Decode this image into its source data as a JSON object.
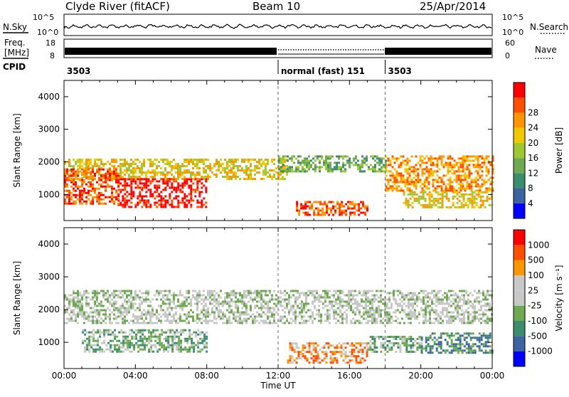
{
  "header": {
    "title": "Clyde River (fitACF)",
    "beam": "Beam 10",
    "date": "25/Apr/2014"
  },
  "top_strip": {
    "left_label": "N.Sky",
    "right_label": "N.Search",
    "left_ticks": [
      "10^5",
      "10^0"
    ],
    "right_ticks": [
      "10^5",
      "10^0"
    ]
  },
  "freq_strip": {
    "left_label_1": "Freq.",
    "left_label_2": "[MHz]",
    "right_label": "Nave",
    "left_ticks": [
      "18",
      "8"
    ],
    "right_ticks": [
      "60",
      "0"
    ]
  },
  "cpid": {
    "label": "CPID",
    "segments": [
      {
        "start_hour": 0,
        "text": "3503"
      },
      {
        "start_hour": 12,
        "text": "normal (fast) 151"
      },
      {
        "start_hour": 18,
        "text": "3503"
      }
    ]
  },
  "colors": {
    "power_scale": [
      "#0000ff",
      "#3c64a0",
      "#3c8c6e",
      "#6eaa50",
      "#a0c832",
      "#f0c800",
      "#ff9600",
      "#ff5000",
      "#ff0000"
    ],
    "velocity_scale": [
      "#0000ff",
      "#3c64a0",
      "#3c8c6e",
      "#6eaa50",
      "#c8c8c8",
      "#c8c8c8",
      "#ff9600",
      "#ff5000",
      "#ff0000"
    ]
  },
  "chart_data": [
    {
      "type": "heatmap",
      "id": "power",
      "ylabel": "Slant Range [km]",
      "ylim": [
        200,
        4500
      ],
      "xlim": [
        0,
        24
      ],
      "y_ticks": [
        "1000",
        "2000",
        "3000",
        "4000"
      ],
      "y_tick_values": [
        1000,
        2000,
        3000,
        4000
      ],
      "colorbar_label": "Power [dB]",
      "colorbar_ticks": [
        "4",
        "8",
        "12",
        "16",
        "20",
        "24",
        "28"
      ],
      "bands": [
        {
          "x": [
            0,
            12.5
          ],
          "y": [
            1500,
            2100
          ],
          "level": 5
        },
        {
          "x": [
            3,
            8
          ],
          "y": [
            600,
            1500
          ],
          "level": 8
        },
        {
          "x": [
            0,
            3
          ],
          "y": [
            700,
            1800
          ],
          "level": 7
        },
        {
          "x": [
            12,
            18
          ],
          "y": [
            1700,
            2200
          ],
          "level": 3
        },
        {
          "x": [
            13,
            17
          ],
          "y": [
            400,
            800
          ],
          "level": 7
        },
        {
          "x": [
            18,
            24
          ],
          "y": [
            1100,
            2200
          ],
          "level": 6
        },
        {
          "x": [
            19,
            24
          ],
          "y": [
            600,
            1100
          ],
          "level": 5
        }
      ]
    },
    {
      "type": "heatmap",
      "id": "velocity",
      "ylabel": "Slant Range [km]",
      "ylim": [
        200,
        4500
      ],
      "xlim": [
        0,
        24
      ],
      "y_ticks": [
        "1000",
        "2000",
        "3000",
        "4000"
      ],
      "y_tick_values": [
        1000,
        2000,
        3000,
        4000
      ],
      "colorbar_label": "Velocity [m s⁻¹]",
      "colorbar_ticks": [
        "1000",
        "500",
        "100",
        "25",
        "-25",
        "-100",
        "-500",
        "-1000"
      ],
      "xlabel": "Time UT",
      "x_ticks": [
        "00:00",
        "04:00",
        "08:00",
        "12:00",
        "16:00",
        "20:00",
        "00:00"
      ],
      "x_tick_values": [
        0,
        4,
        8,
        12,
        16,
        20,
        24
      ],
      "bands": [
        {
          "x": [
            0,
            24
          ],
          "y": [
            1600,
            2600
          ],
          "level": 4
        },
        {
          "x": [
            1,
            8
          ],
          "y": [
            700,
            1400
          ],
          "level": 3
        },
        {
          "x": [
            12.5,
            17
          ],
          "y": [
            400,
            1000
          ],
          "level": 6
        },
        {
          "x": [
            17,
            20
          ],
          "y": [
            700,
            1200
          ],
          "level": 3
        },
        {
          "x": [
            20,
            24
          ],
          "y": [
            700,
            1300
          ],
          "level": 2
        }
      ]
    }
  ]
}
